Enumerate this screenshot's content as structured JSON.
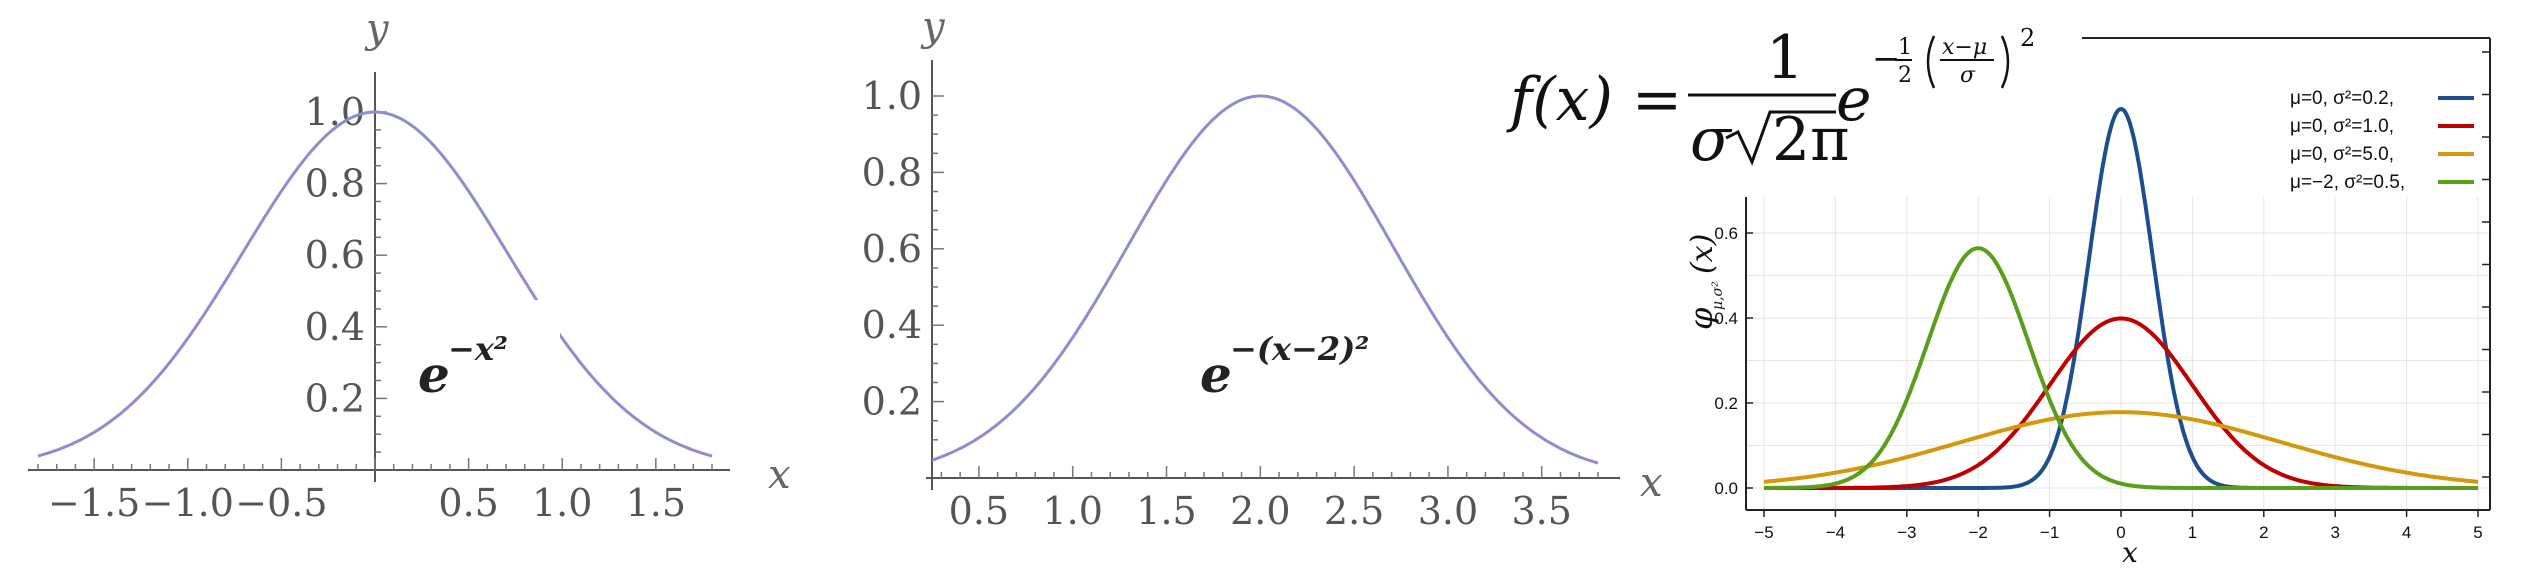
{
  "chart_data": [
    {
      "type": "line",
      "xlabel": "x",
      "ylabel": "y",
      "xlim": [
        -1.8,
        1.8
      ],
      "ylim": [
        0,
        1.0
      ],
      "x_ticks": [
        "−1.5",
        "−1.0",
        "−0.5",
        "0.5",
        "1.0",
        "1.5"
      ],
      "y_ticks": [
        "0.2",
        "0.4",
        "0.6",
        "0.8",
        "1.0"
      ],
      "annotation": {
        "base": "e",
        "exponent": "−x²"
      },
      "series": [
        {
          "function": "exp(-x^2)",
          "color": "#8e8ecf"
        }
      ]
    },
    {
      "type": "line",
      "xlabel": "x",
      "ylabel": "y",
      "xlim": [
        0.25,
        3.8
      ],
      "ylim": [
        0,
        1.0
      ],
      "x_ticks": [
        "0.5",
        "1.0",
        "1.5",
        "2.0",
        "2.5",
        "3.0",
        "3.5"
      ],
      "y_ticks": [
        "0.2",
        "0.4",
        "0.6",
        "0.8",
        "1.0"
      ],
      "annotation": {
        "base": "e",
        "exponent": "−(x−2)²"
      },
      "series": [
        {
          "function": "exp(-(x-2)^2)",
          "color": "#8e8ecf"
        }
      ]
    },
    {
      "type": "line",
      "xlabel": "x",
      "ylabel": "φ",
      "ylabel_subscript": "μ,σ²",
      "ylabel_arg": "(x)",
      "xlim": [
        -5,
        5
      ],
      "ylim": [
        0,
        0.68
      ],
      "x_ticks": [
        "−5",
        "−4",
        "−3",
        "−2",
        "−1",
        "0",
        "1",
        "2",
        "3",
        "4",
        "5"
      ],
      "y_ticks": [
        "0.0",
        "0.2",
        "0.4",
        "0.6"
      ],
      "grid": true,
      "legend_position": "top-right",
      "series": [
        {
          "label": "μ=0,    σ²=0.2,",
          "mu": 0,
          "sigma2": 0.2,
          "color": "#1f4e8c"
        },
        {
          "label": "μ=0,    σ²=1.0,",
          "mu": 0,
          "sigma2": 1.0,
          "color": "#c00000"
        },
        {
          "label": "μ=0,    σ²=5.0,",
          "mu": 0,
          "sigma2": 5.0,
          "color": "#d4980a"
        },
        {
          "label": "μ=−2,  σ²=0.5,",
          "mu": -2,
          "sigma2": 0.5,
          "color": "#5a9e1a"
        }
      ]
    }
  ],
  "formula": {
    "lhs": "f(x) =",
    "numerator": "1",
    "denominator_sigma": "σ",
    "denominator_root": "2π",
    "base": "e",
    "exp_minus": "−",
    "exp_half_num": "1",
    "exp_half_den": "2",
    "exp_frac_num": "x−μ",
    "exp_frac_den": "σ",
    "exp_power": "2"
  }
}
